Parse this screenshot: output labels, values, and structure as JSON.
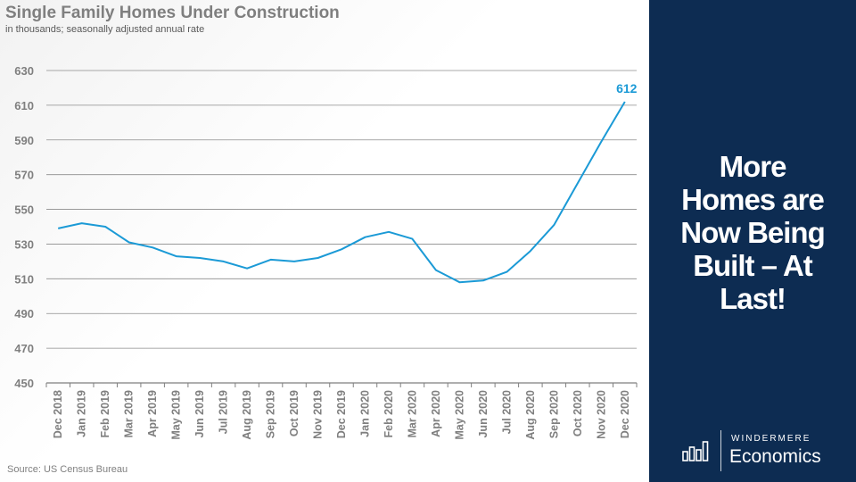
{
  "chart_data": {
    "type": "line",
    "title": "Single Family Homes Under Construction",
    "subtitle": "in thousands; seasonally adjusted annual rate",
    "source": "Source: US Census Bureau",
    "xlabel": "",
    "ylabel": "",
    "ylim": [
      450,
      630
    ],
    "yticks": [
      450,
      470,
      490,
      510,
      530,
      550,
      570,
      590,
      610,
      630
    ],
    "grid": true,
    "categories": [
      "Dec 2018",
      "Jan 2019",
      "Feb 2019",
      "Mar 2019",
      "Apr 2019",
      "May 2019",
      "Jun 2019",
      "Jul 2019",
      "Aug 2019",
      "Sep 2019",
      "Oct 2019",
      "Nov 2019",
      "Dec 2019",
      "Jan 2020",
      "Feb 2020",
      "Mar 2020",
      "Apr 2020",
      "May 2020",
      "Jun 2020",
      "Jul 2020",
      "Aug 2020",
      "Sep 2020",
      "Oct 2020",
      "Nov 2020",
      "Dec 2020"
    ],
    "series": [
      {
        "name": "Single Family Homes Under Construction",
        "color": "#1b9ad6",
        "values": [
          539,
          542,
          540,
          531,
          528,
          523,
          522,
          520,
          516,
          521,
          520,
          522,
          527,
          534,
          537,
          533,
          515,
          508,
          509,
          514,
          526,
          541,
          565,
          589,
          612
        ]
      }
    ],
    "annotations": [
      {
        "category": "Dec 2020",
        "text": "612",
        "color": "#1b9ad6"
      }
    ]
  },
  "sidebar": {
    "headline_lines": [
      "More",
      "Homes are",
      "Now Being",
      "Built – At",
      "Last!"
    ],
    "background": "#0d2c52"
  },
  "logo": {
    "brand": "WINDERMERE",
    "product": "Economics"
  }
}
